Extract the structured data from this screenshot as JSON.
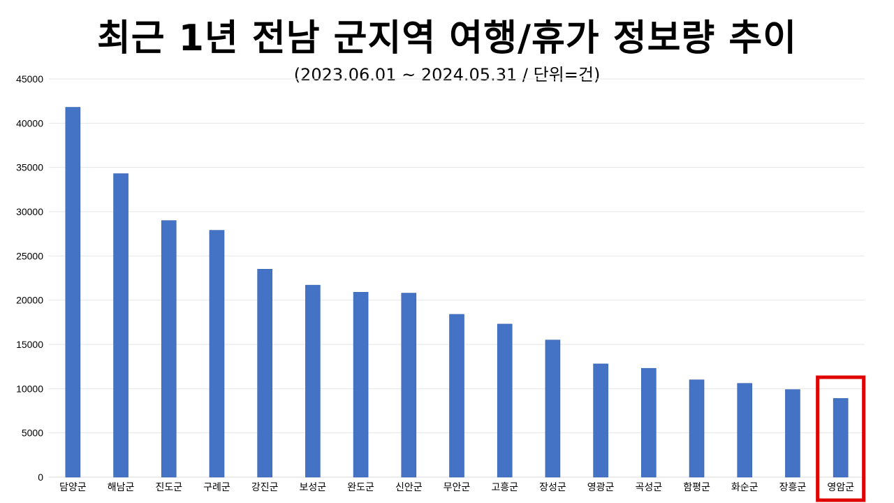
{
  "colors": {
    "bar": "#4472c4",
    "bar_edge": "#3560ad",
    "grid": "#e6e6e6",
    "highlight": "#e00000"
  },
  "chart_data": {
    "type": "bar",
    "title": "최근 1년 전남 군지역 여행/휴가 정보량 추이",
    "subtitle": "(2023.06.01 ~ 2024.05.31 / 단위=건)",
    "xlabel": "",
    "ylabel": "",
    "ylim": [
      0,
      45000
    ],
    "yticks": [
      0,
      5000,
      10000,
      15000,
      20000,
      25000,
      30000,
      35000,
      40000,
      45000
    ],
    "grid": true,
    "legend": "none",
    "categories": [
      "담양군",
      "해남군",
      "진도군",
      "구례군",
      "강진군",
      "보성군",
      "완도군",
      "신안군",
      "무안군",
      "고흥군",
      "장성군",
      "영광군",
      "곡성군",
      "함평군",
      "화순군",
      "장흥군",
      "영암군"
    ],
    "values": [
      41800,
      34300,
      29000,
      27900,
      23500,
      21700,
      20900,
      20800,
      18400,
      17300,
      15500,
      12800,
      12300,
      11000,
      10600,
      9900,
      8900
    ],
    "highlighted_category": "영암군"
  }
}
